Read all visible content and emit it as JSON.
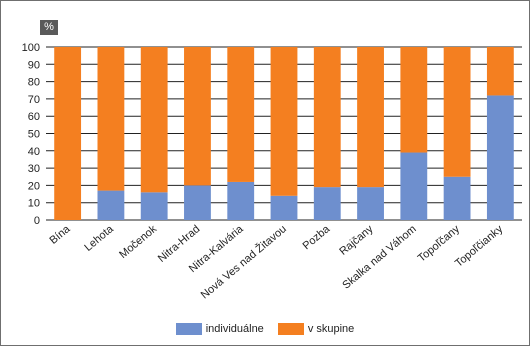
{
  "chart_data": {
    "type": "bar",
    "stacked": true,
    "unit_label": "%",
    "ylim": [
      0,
      100
    ],
    "yticks": [
      0,
      10,
      20,
      30,
      40,
      50,
      60,
      70,
      80,
      90,
      100
    ],
    "grid": true,
    "legend_position": "bottom",
    "categories": [
      "Bína",
      "Lehota",
      "Močenok",
      "Nitra-Hrad",
      "Nitra-Kalvária",
      "Nová Ves nad Žitavou",
      "Pozba",
      "Rajčany",
      "Skalka nad Váhom",
      "Topoľčany",
      "Topoľčianky"
    ],
    "series": [
      {
        "name": "individuálne",
        "color": "#6e8fce",
        "values": [
          0,
          17,
          16,
          20,
          22,
          14,
          19,
          19,
          39,
          25,
          72
        ]
      },
      {
        "name": "v skupine",
        "color": "#f47f20",
        "values": [
          100,
          83,
          84,
          80,
          78,
          86,
          81,
          81,
          61,
          75,
          28
        ]
      }
    ]
  }
}
